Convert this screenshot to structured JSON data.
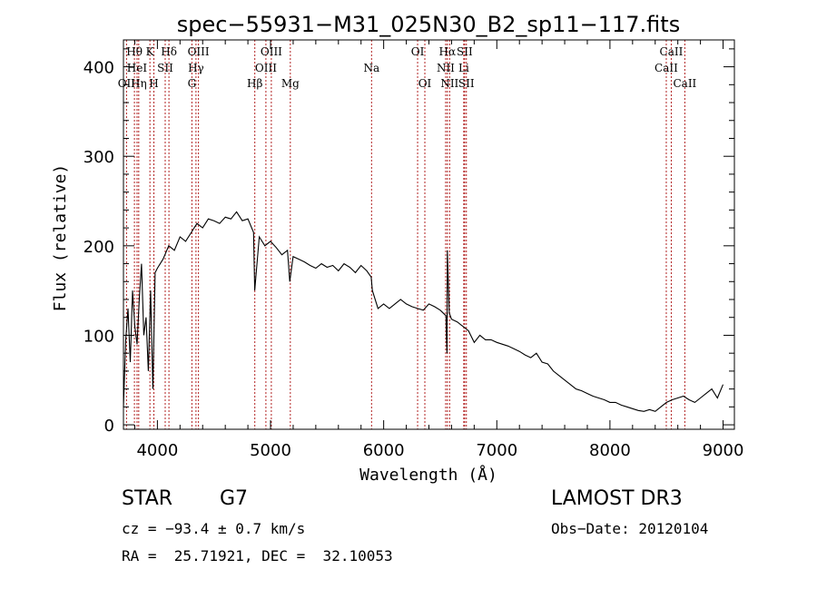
{
  "chart_data": {
    "type": "line",
    "title": "spec−55931−M31_025N30_B2_sp11−117.fits",
    "xlabel": "Wavelength (Å)",
    "ylabel": "Flux (relative)",
    "xlim": [
      3700,
      9100
    ],
    "ylim": [
      -5,
      430
    ],
    "x_ticks": [
      4000,
      5000,
      6000,
      7000,
      8000,
      9000
    ],
    "y_ticks": [
      0,
      100,
      200,
      300,
      400
    ],
    "series": [
      {
        "name": "flux",
        "x": [
          3700,
          3720,
          3740,
          3760,
          3780,
          3800,
          3820,
          3840,
          3860,
          3880,
          3900,
          3920,
          3940,
          3960,
          3980,
          4000,
          4050,
          4100,
          4150,
          4200,
          4250,
          4300,
          4350,
          4400,
          4450,
          4500,
          4550,
          4600,
          4650,
          4700,
          4750,
          4800,
          4850,
          4860,
          4900,
          4950,
          5000,
          5050,
          5100,
          5150,
          5170,
          5200,
          5250,
          5300,
          5350,
          5400,
          5450,
          5500,
          5550,
          5600,
          5650,
          5700,
          5750,
          5800,
          5850,
          5890,
          5900,
          5950,
          6000,
          6050,
          6100,
          6150,
          6200,
          6250,
          6300,
          6350,
          6400,
          6450,
          6500,
          6550,
          6560,
          6563,
          6580,
          6600,
          6650,
          6700,
          6750,
          6800,
          6850,
          6900,
          6950,
          7000,
          7050,
          7100,
          7150,
          7200,
          7250,
          7300,
          7350,
          7400,
          7450,
          7500,
          7550,
          7600,
          7650,
          7700,
          7750,
          7800,
          7850,
          7900,
          7950,
          8000,
          8050,
          8100,
          8150,
          8200,
          8250,
          8300,
          8350,
          8400,
          8450,
          8500,
          8550,
          8600,
          8650,
          8700,
          8750,
          8800,
          8850,
          8900,
          8950,
          9000
        ],
        "values": [
          20,
          95,
          130,
          70,
          150,
          110,
          90,
          140,
          180,
          100,
          120,
          60,
          150,
          40,
          170,
          175,
          185,
          200,
          195,
          210,
          205,
          215,
          225,
          220,
          230,
          228,
          225,
          232,
          230,
          238,
          228,
          230,
          215,
          150,
          210,
          200,
          205,
          198,
          190,
          195,
          160,
          188,
          185,
          182,
          178,
          175,
          180,
          176,
          178,
          172,
          180,
          176,
          170,
          178,
          172,
          165,
          150,
          130,
          135,
          130,
          135,
          140,
          135,
          132,
          130,
          128,
          135,
          132,
          128,
          122,
          80,
          195,
          125,
          118,
          115,
          110,
          105,
          92,
          100,
          95,
          95,
          92,
          90,
          88,
          85,
          82,
          78,
          75,
          80,
          70,
          68,
          60,
          55,
          50,
          45,
          40,
          38,
          35,
          32,
          30,
          28,
          25,
          25,
          22,
          20,
          18,
          16,
          15,
          17,
          15,
          20,
          25,
          28,
          30,
          32,
          28,
          25,
          30,
          35,
          40,
          30,
          45
        ]
      }
    ],
    "lines": [
      {
        "name": "O II",
        "label": "OII",
        "x": 3727,
        "row": 2
      },
      {
        "name": "H theta",
        "label": "Hθ",
        "x": 3797,
        "row": 0
      },
      {
        "name": "He I",
        "label": "HeI",
        "x": 3820,
        "row": 1
      },
      {
        "name": "H eta",
        "label": "Hη",
        "x": 3835,
        "row": 2
      },
      {
        "name": "K",
        "label": "K",
        "x": 3934,
        "row": 0
      },
      {
        "name": "S II",
        "label": "SII",
        "x": 4069,
        "row": 1
      },
      {
        "name": "H",
        "label": "H",
        "x": 3969,
        "row": 2
      },
      {
        "name": "H delta",
        "label": "Hδ",
        "x": 4102,
        "row": 0
      },
      {
        "name": "O III 4363",
        "label": "OIII",
        "x": 4363,
        "row": 0
      },
      {
        "name": "H gamma",
        "label": "Hγ",
        "x": 4341,
        "row": 1
      },
      {
        "name": "G",
        "label": "G",
        "x": 4305,
        "row": 2
      },
      {
        "name": "O III 5007",
        "label": "OIII",
        "x": 5007,
        "row": 0
      },
      {
        "name": "O III 4959",
        "label": "OIII",
        "x": 4959,
        "row": 1
      },
      {
        "name": "H beta",
        "label": "Hβ",
        "x": 4861,
        "row": 2
      },
      {
        "name": "Mg",
        "label": "Mg",
        "x": 5175,
        "row": 2
      },
      {
        "name": "Na",
        "label": "Na",
        "x": 5893,
        "row": 1
      },
      {
        "name": "O I 6300",
        "label": "OI",
        "x": 6300,
        "row": 0
      },
      {
        "name": "O I 6364",
        "label": "OI",
        "x": 6364,
        "row": 2
      },
      {
        "name": "H alpha",
        "label": "Hα",
        "x": 6563,
        "row": 0
      },
      {
        "name": "S II 6716",
        "label": "SII",
        "x": 6716,
        "row": 0
      },
      {
        "name": "N II 6548",
        "label": "NII",
        "x": 6548,
        "row": 1
      },
      {
        "name": "Li",
        "label": "Li",
        "x": 6708,
        "row": 1
      },
      {
        "name": "N II 6583",
        "label": "NII",
        "x": 6583,
        "row": 2
      },
      {
        "name": "S II 6731",
        "label": "SII",
        "x": 6731,
        "row": 2
      },
      {
        "name": "Ca II 8542",
        "label": "CaII",
        "x": 8542,
        "row": 0
      },
      {
        "name": "Ca II 8498",
        "label": "CaII",
        "x": 8498,
        "row": 1
      },
      {
        "name": "Ca II 8662",
        "label": "CaII",
        "x": 8662,
        "row": 2
      }
    ]
  },
  "info": {
    "class": "STAR",
    "subclass": "G7",
    "survey": "LAMOST DR3",
    "cz": "cz = −93.4 ± 0.7 km/s",
    "obs_date": "Obs−Date: 20120104",
    "radec": "RA =  25.71921, DEC =  32.10053"
  },
  "colors": {
    "axis": "#000000",
    "spectrum": "#000000",
    "line_marker": "#b22222"
  }
}
